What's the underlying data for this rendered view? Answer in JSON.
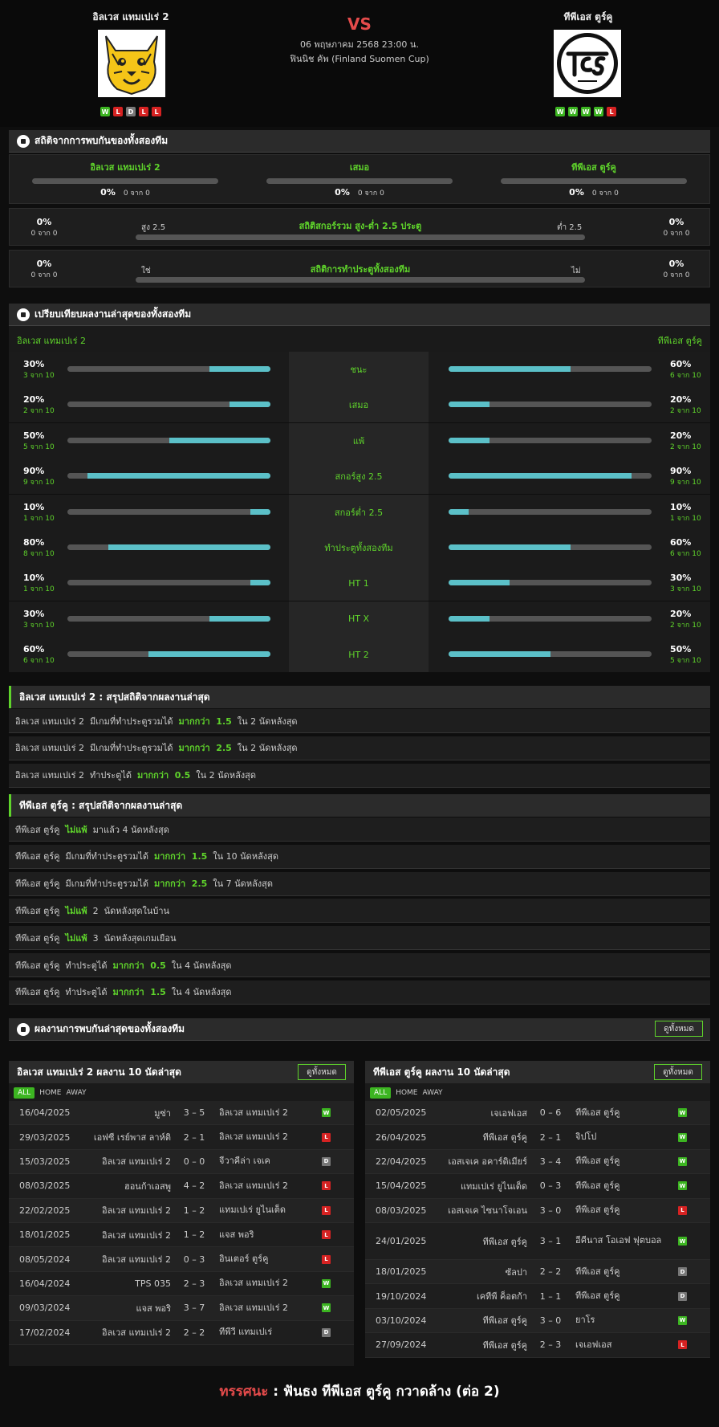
{
  "match": {
    "home_name": "อิลเวส แทมเปเร่ 2",
    "away_name": "ทีพีเอส ตูร์คู",
    "vs": "VS",
    "date": "06 พฤษภาคม 2568 23:00 น.",
    "competition": "ฟินนิช คัพ (Finland Suomen Cup)",
    "home_form": [
      "W",
      "L",
      "D",
      "L",
      "L"
    ],
    "away_form": [
      "W",
      "W",
      "W",
      "W",
      "L"
    ]
  },
  "h2h": {
    "title": "สถิติจากการพบกันของทั้งสองทีม",
    "cols": [
      {
        "label": "อิลเวส แทมเปเร่ 2",
        "pct": "0%",
        "sub": "0 จาก 0"
      },
      {
        "label": "เสมอ",
        "pct": "0%",
        "sub": "0 จาก 0"
      },
      {
        "label": "ทีพีเอส ตูร์คู",
        "pct": "0%",
        "sub": "0 จาก 0"
      }
    ],
    "ou": {
      "title": "สถิติสกอร์รวม สูง-ต่ำ 2.5 ประตู",
      "left_label": "สูง 2.5",
      "right_label": "ต่ำ 2.5",
      "lpct": "0%",
      "lsub": "0 จาก 0",
      "rpct": "0%",
      "rsub": "0 จาก 0"
    },
    "btts": {
      "title": "สถิติการทำประตูทั้งสองทีม",
      "left_label": "ใช่",
      "right_label": "ไม่",
      "lpct": "0%",
      "lsub": "0 จาก 0",
      "rpct": "0%",
      "rsub": "0 จาก 0"
    }
  },
  "compare": {
    "title": "เปรียบเทียบผลงานล่าสุดของทั้งสองทีม",
    "home": "อิลเวส แทมเปเร่ 2",
    "away": "ทีพีเอส ตูร์คู",
    "rows": [
      {
        "label": "ชนะ",
        "lp": "30%",
        "ls": "3 จาก 10",
        "lv": 0.3,
        "rp": "60%",
        "rs": "6 จาก 10",
        "rv": 0.6
      },
      {
        "label": "เสมอ",
        "lp": "20%",
        "ls": "2 จาก 10",
        "lv": 0.2,
        "rp": "20%",
        "rs": "2 จาก 10",
        "rv": 0.2
      },
      {
        "label": "แพ้",
        "lp": "50%",
        "ls": "5 จาก 10",
        "lv": 0.5,
        "rp": "20%",
        "rs": "2 จาก 10",
        "rv": 0.2
      },
      {
        "label": "สกอร์สูง 2.5",
        "lp": "90%",
        "ls": "9 จาก 10",
        "lv": 0.9,
        "rp": "90%",
        "rs": "9 จาก 10",
        "rv": 0.9
      },
      {
        "label": "สกอร์ต่ำ 2.5",
        "lp": "10%",
        "ls": "1 จาก 10",
        "lv": 0.1,
        "rp": "10%",
        "rs": "1 จาก 10",
        "rv": 0.1
      },
      {
        "label": "ทำประตูทั้งสองทีม",
        "lp": "80%",
        "ls": "8 จาก 10",
        "lv": 0.8,
        "rp": "60%",
        "rs": "6 จาก 10",
        "rv": 0.6
      },
      {
        "label": "HT 1",
        "lp": "10%",
        "ls": "1 จาก 10",
        "lv": 0.1,
        "rp": "30%",
        "rs": "3 จาก 10",
        "rv": 0.3
      },
      {
        "label": "HT X",
        "lp": "30%",
        "ls": "3 จาก 10",
        "lv": 0.3,
        "rp": "20%",
        "rs": "2 จาก 10",
        "rv": 0.2
      },
      {
        "label": "HT 2",
        "lp": "60%",
        "ls": "6 จาก 10",
        "lv": 0.6,
        "rp": "50%",
        "rs": "5 จาก 10",
        "rv": 0.5
      }
    ]
  },
  "home_summary": {
    "title": "อิลเวส แทมเปเร่ 2 : สรุปสถิติจากผลงานล่าสุด",
    "lines": [
      [
        [
          "อิลเวส แทมเปเร่ 2  มีเกมที่ทำประตูรวมได้  ",
          0
        ],
        [
          "มากกว่า  1.5",
          1
        ],
        [
          "  ใน 2 นัดหลังสุด",
          0
        ]
      ],
      [
        [
          "อิลเวส แทมเปเร่ 2  มีเกมที่ทำประตูรวมได้  ",
          0
        ],
        [
          "มากกว่า  2.5",
          1
        ],
        [
          "  ใน 2 นัดหลังสุด",
          0
        ]
      ],
      [
        [
          "อิลเวส แทมเปเร่ 2  ทำประตูได้  ",
          0
        ],
        [
          "มากกว่า  0.5",
          1
        ],
        [
          "  ใน 2 นัดหลังสุด",
          0
        ]
      ]
    ]
  },
  "away_summary": {
    "title": "ทีพีเอส ตูร์คู : สรุปสถิติจากผลงานล่าสุด",
    "lines": [
      [
        [
          "ทีพีเอส ตูร์คู  ",
          0
        ],
        [
          "ไม่แพ้",
          1
        ],
        [
          "  มาแล้ว 4 นัดหลังสุด",
          0
        ]
      ],
      [
        [
          "ทีพีเอส ตูร์คู  มีเกมที่ทำประตูรวมได้  ",
          0
        ],
        [
          "มากกว่า  1.5",
          1
        ],
        [
          "  ใน 10 นัดหลังสุด",
          0
        ]
      ],
      [
        [
          "ทีพีเอส ตูร์คู  มีเกมที่ทำประตูรวมได้  ",
          0
        ],
        [
          "มากกว่า  2.5",
          1
        ],
        [
          "  ใน 7 นัดหลังสุด",
          0
        ]
      ],
      [
        [
          "ทีพีเอส ตูร์คู  ",
          0
        ],
        [
          "ไม่แพ้",
          1
        ],
        [
          "  2  นัดหลังสุดในบ้าน",
          0
        ]
      ],
      [
        [
          "ทีพีเอส ตูร์คู  ",
          0
        ],
        [
          "ไม่แพ้",
          1
        ],
        [
          "  3  นัดหลังสุดเกมเยือน",
          0
        ]
      ],
      [
        [
          "ทีพีเอส ตูร์คู  ทำประตูได้  ",
          0
        ],
        [
          "มากกว่า  0.5",
          1
        ],
        [
          "  ใน 4 นัดหลังสุด",
          0
        ]
      ],
      [
        [
          "ทีพีเอส ตูร์คู  ทำประตูได้  ",
          0
        ],
        [
          "มากกว่า  1.5",
          1
        ],
        [
          "  ใน 4 นัดหลังสุด",
          0
        ]
      ]
    ]
  },
  "recent": {
    "title": "ผลงานการพบกันล่าสุดของทั้งสองทีม",
    "view_all": "ดูทั้งหมด",
    "tabs": [
      "ALL",
      "HOME",
      "AWAY"
    ],
    "home": {
      "title": "อิลเวส แทมเปเร่ 2 ผลงาน 10 นัดล่าสุด",
      "matches": [
        [
          "16/04/2025",
          "มูซ่า",
          "3 – 5",
          "อิลเวส แทมเปเร่ 2",
          "W"
        ],
        [
          "29/03/2025",
          "เอฟซี เรย์พาส ลาห์ติ",
          "2 – 1",
          "อิลเวส แทมเปเร่ 2",
          "L"
        ],
        [
          "15/03/2025",
          "อิลเวส แทมเปเร่ 2",
          "0 – 0",
          "จีวาคีล่า เจเค",
          "D"
        ],
        [
          "08/03/2025",
          "ฮอนก้าเอสพู",
          "4 – 2",
          "อิลเวส แทมเปเร่ 2",
          "L"
        ],
        [
          "22/02/2025",
          "อิลเวส แทมเปเร่ 2",
          "1 – 2",
          "แทมเปเร่ ยูไนเต็ด",
          "L"
        ],
        [
          "18/01/2025",
          "อิลเวส แทมเปเร่ 2",
          "1 – 2",
          "แจส พอริ",
          "L"
        ],
        [
          "08/05/2024",
          "อิลเวส แทมเปเร่ 2",
          "0 – 3",
          "อินเตอร์ ตูร์คู",
          "L"
        ],
        [
          "16/04/2024",
          "TPS 035",
          "2 – 3",
          "อิลเวส แทมเปเร่ 2",
          "W"
        ],
        [
          "09/03/2024",
          "แจส พอริ",
          "3 – 7",
          "อิลเวส แทมเปเร่ 2",
          "W"
        ],
        [
          "17/02/2024",
          "อิลเวส แทมเปเร่ 2",
          "2 – 2",
          "ทีพีวี แทมเปเร่",
          "D"
        ]
      ]
    },
    "away": {
      "title": "ทีพีเอส ตูร์คู ผลงาน 10 นัดล่าสุด",
      "matches": [
        [
          "02/05/2025",
          "เจเอฟเอส",
          "0 – 6",
          "ทีพีเอส ตูร์คู",
          "W"
        ],
        [
          "26/04/2025",
          "ทีพีเอส ตูร์คู",
          "2 – 1",
          "จิปโป",
          "W"
        ],
        [
          "22/04/2025",
          "เอสเจเค อคาร์ดิเมียร์",
          "3 – 4",
          "ทีพีเอส ตูร์คู",
          "W"
        ],
        [
          "15/04/2025",
          "แทมเปเร่ ยูไนเต็ด",
          "0 – 3",
          "ทีพีเอส ตูร์คู",
          "W"
        ],
        [
          "08/03/2025",
          "เอสเจเค ไซนาโจเอน",
          "3 – 0",
          "ทีพีเอส ตูร์คู",
          "L"
        ],
        [
          "24/01/2025",
          "ทีพีเอส ตูร์คู",
          "3 – 1",
          "อีคีนาส โอเอฟ ฟุตบอล",
          "W"
        ],
        [
          "18/01/2025",
          "ซัลปา",
          "2 – 2",
          "ทีพีเอส ตูร์คู",
          "D"
        ],
        [
          "19/10/2024",
          "เคทีพี ค็อตก้า",
          "1 – 1",
          "ทีพีเอส ตูร์คู",
          "D"
        ],
        [
          "03/10/2024",
          "ทีพีเอส ตูร์คู",
          "3 – 0",
          "ยาโร",
          "W"
        ],
        [
          "27/09/2024",
          "ทีพีเอส ตูร์คู",
          "2 – 3",
          "เจเอฟเอส",
          "L"
        ]
      ]
    }
  },
  "prediction": {
    "label": "ทรรศนะ",
    "sep": " : ",
    "text": "ฟันธง ทีพีเอส ตูร์คู กวาดล้าง (ต่อ 2)"
  },
  "colors": {
    "accent": "#5fd42b",
    "vs": "#e54b4b",
    "bar_fill": "#5bc0c8",
    "win": "#3cb521",
    "loss": "#d62222",
    "draw": "#777777"
  }
}
